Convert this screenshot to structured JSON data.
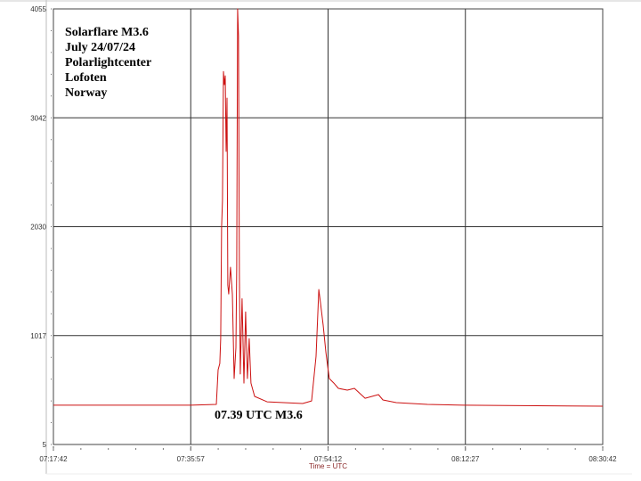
{
  "chart_data": {
    "type": "line",
    "title": "",
    "xlabel": "Time = UTC",
    "ylabel": "",
    "x_ticks": [
      "07:17:42",
      "07:35:57",
      "07:54:12",
      "08:12:27",
      "08:30:42"
    ],
    "y_ticks": [
      5,
      1017,
      2030,
      3042,
      4055
    ],
    "xlim": [
      "07:17:42",
      "08:30:42"
    ],
    "ylim": [
      5,
      4055
    ],
    "grid": true,
    "line_color": "#cc1111",
    "annotations": {
      "info": [
        "Solarflare M3.6",
        "July 24/07/24",
        "Polarlightcenter",
        "Lofoten",
        "Norway"
      ],
      "event": "07.39 UTC M3.6"
    },
    "series": [
      {
        "x": [
          "07:17:42",
          "07:35:57",
          "07:39:21",
          "07:39:35",
          "07:39:49",
          "07:39:56",
          "07:40:03",
          "07:40:10",
          "07:40:18",
          "07:40:25",
          "07:40:32",
          "07:40:39",
          "07:40:46",
          "07:40:53",
          "07:41:00",
          "07:41:14",
          "07:41:29",
          "07:41:43",
          "07:41:57",
          "07:42:04",
          "07:42:11",
          "07:42:18",
          "07:42:25",
          "07:42:32",
          "07:42:46",
          "07:43:01",
          "07:43:15",
          "07:43:29",
          "07:43:43",
          "07:43:57",
          "07:44:26",
          "07:46:06",
          "07:50:50",
          "07:52:01",
          "07:52:36",
          "07:52:58",
          "07:53:12",
          "07:53:33",
          "07:53:54",
          "07:54:08",
          "07:54:22",
          "07:54:58",
          "07:55:34",
          "07:56:45",
          "07:57:42",
          "07:59:07",
          "08:00:54",
          "08:01:29",
          "08:03:16",
          "08:07:24",
          "08:12:08",
          "08:30:42"
        ],
        "y": [
          370,
          370,
          378,
          700,
          758,
          990,
          2025,
          2273,
          3474,
          3350,
          3433,
          2730,
          3226,
          1487,
          1404,
          1653,
          1404,
          618,
          907,
          1653,
          4055,
          3805,
          1570,
          660,
          1362,
          576,
          1238,
          618,
          990,
          576,
          452,
          402,
          386,
          410,
          825,
          1446,
          1321,
          1114,
          866,
          742,
          618,
          576,
          527,
          510,
          527,
          435,
          469,
          419,
          394,
          378,
          370,
          361
        ]
      }
    ]
  }
}
